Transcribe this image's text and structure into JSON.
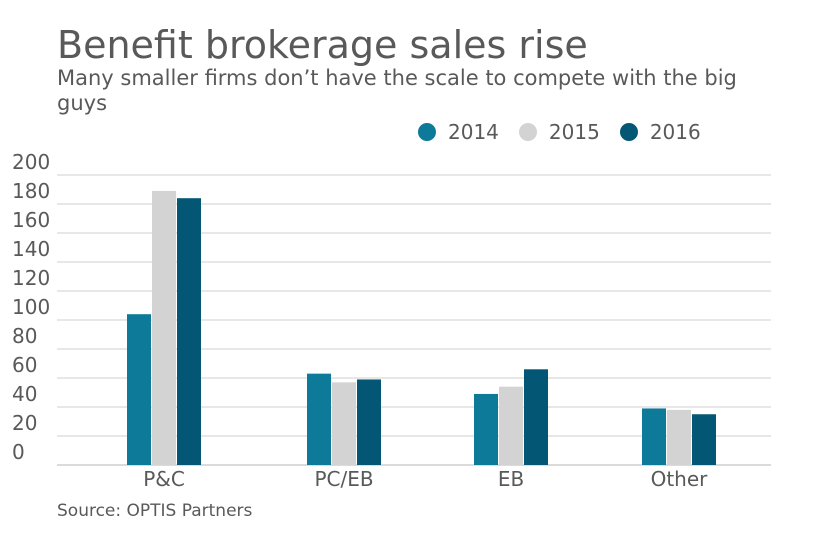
{
  "title": "Benefit brokerage sales rise",
  "subtitle": "Many smaller firms don’t have the scale to compete with the big guys",
  "source": "Source: OPTIS Partners",
  "colors": {
    "series_2014": "#0d7a99",
    "series_2015": "#d3d3d3",
    "series_2016": "#035674",
    "grid": "#cfcfcf",
    "text": "#595959"
  },
  "chart_data": {
    "type": "bar",
    "title": "Benefit brokerage sales rise",
    "subtitle": "Many smaller firms don’t have the scale to compete with the big guys",
    "categories": [
      "P&C",
      "PC/EB",
      "EB",
      "Other"
    ],
    "series": [
      {
        "name": "2014",
        "values": [
          104,
          63,
          49,
          39
        ]
      },
      {
        "name": "2015",
        "values": [
          189,
          57,
          54,
          38
        ]
      },
      {
        "name": "2016",
        "values": [
          184,
          59,
          66,
          35
        ]
      }
    ],
    "ylim": [
      0,
      200
    ],
    "yticks": [
      0,
      20,
      40,
      60,
      80,
      100,
      120,
      140,
      160,
      180,
      200
    ],
    "grid": true,
    "legend_position": "top-right"
  }
}
